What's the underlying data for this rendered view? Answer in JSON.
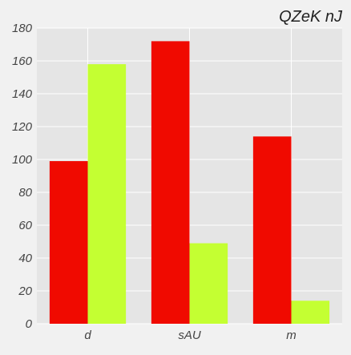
{
  "chart_data": {
    "type": "bar",
    "title": "QZeK nJ",
    "xlabel": "",
    "ylabel": "",
    "categories": [
      "d",
      "sAU",
      "m"
    ],
    "series": [
      {
        "color": "#f00a00",
        "values": [
          99,
          172,
          114
        ]
      },
      {
        "color": "#c4ff32",
        "values": [
          158,
          49,
          14
        ]
      }
    ],
    "ylim": [
      0,
      180
    ],
    "yticks": [
      0,
      20,
      40,
      60,
      80,
      100,
      120,
      140,
      160,
      180
    ],
    "grid": true,
    "legend": "none",
    "colors": {
      "plot_background": "#e5e5e5",
      "page_background": "#f1f1f1",
      "grid": "#ffffff"
    }
  }
}
